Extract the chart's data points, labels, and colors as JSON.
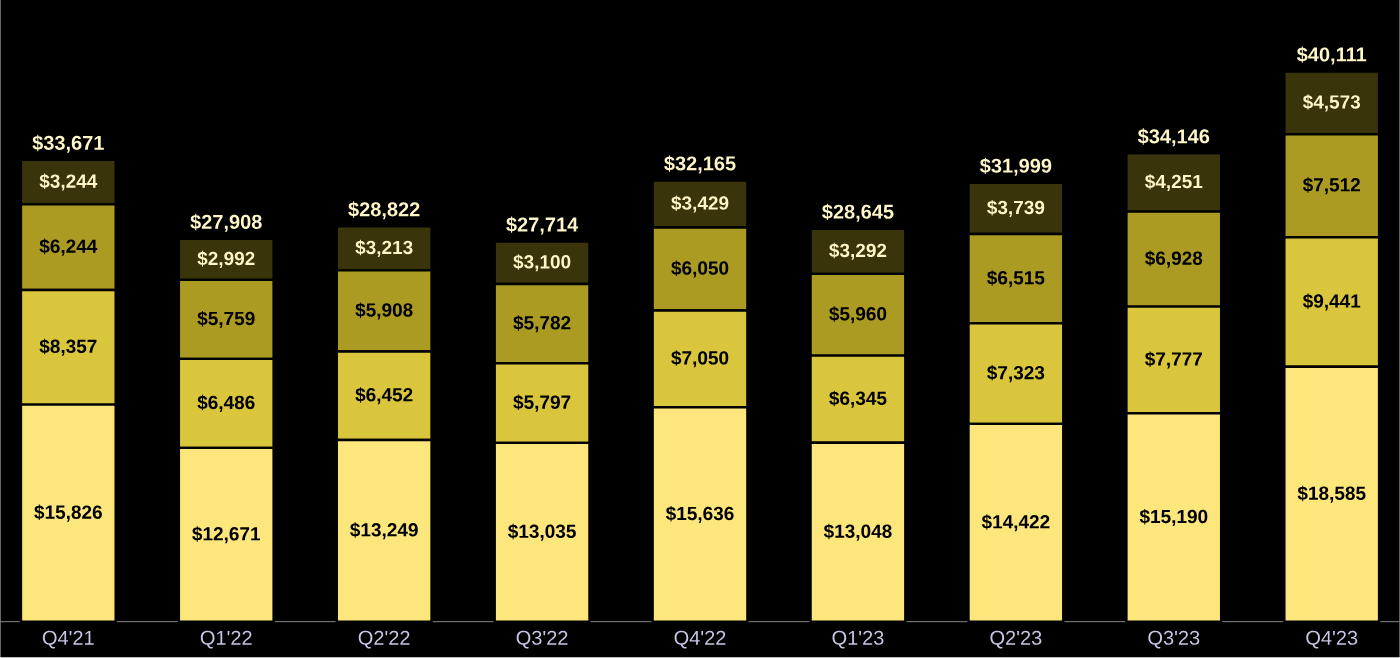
{
  "chart_data": {
    "type": "bar",
    "stacked": true,
    "categories": [
      "Q4'21",
      "Q1'22",
      "Q2'22",
      "Q3'22",
      "Q4'22",
      "Q1'23",
      "Q2'23",
      "Q3'23",
      "Q4'23"
    ],
    "series": [
      {
        "color": "#fde67c",
        "values": [
          15826,
          12671,
          13249,
          13035,
          15636,
          13048,
          14422,
          15190,
          18585
        ],
        "value_labels": [
          "$15,826",
          "$12,671",
          "$13,249",
          "$13,035",
          "$15,636",
          "$13,048",
          "$14,422",
          "$15,190",
          "$18,585"
        ]
      },
      {
        "color": "#dac63c",
        "values": [
          8357,
          6486,
          6452,
          5797,
          7050,
          6345,
          7323,
          7777,
          9441
        ],
        "value_labels": [
          "$8,357",
          "$6,486",
          "$6,452",
          "$5,797",
          "$7,050",
          "$6,345",
          "$7,323",
          "$7,777",
          "$9,441"
        ]
      },
      {
        "color": "#ab9b22",
        "values": [
          6244,
          5759,
          5908,
          5782,
          6050,
          5960,
          6515,
          6928,
          7512
        ],
        "value_labels": [
          "$6,244",
          "$5,759",
          "$5,908",
          "$5,782",
          "$6,050",
          "$5,960",
          "$6,515",
          "$6,928",
          "$7,512"
        ]
      },
      {
        "color": "#3a340a",
        "values": [
          3244,
          2992,
          3213,
          3100,
          3429,
          3292,
          3739,
          4251,
          4573
        ],
        "value_labels": [
          "$3,244",
          "$2,992",
          "$3,213",
          "$3,100",
          "$3,429",
          "$3,292",
          "$3,739",
          "$4,251",
          "$4,573"
        ]
      }
    ],
    "totals": [
      "$33,671",
      "$27,908",
      "$28,822",
      "$27,714",
      "$32,165",
      "$28,645",
      "$31,999",
      "$34,146",
      "$40,111"
    ]
  }
}
